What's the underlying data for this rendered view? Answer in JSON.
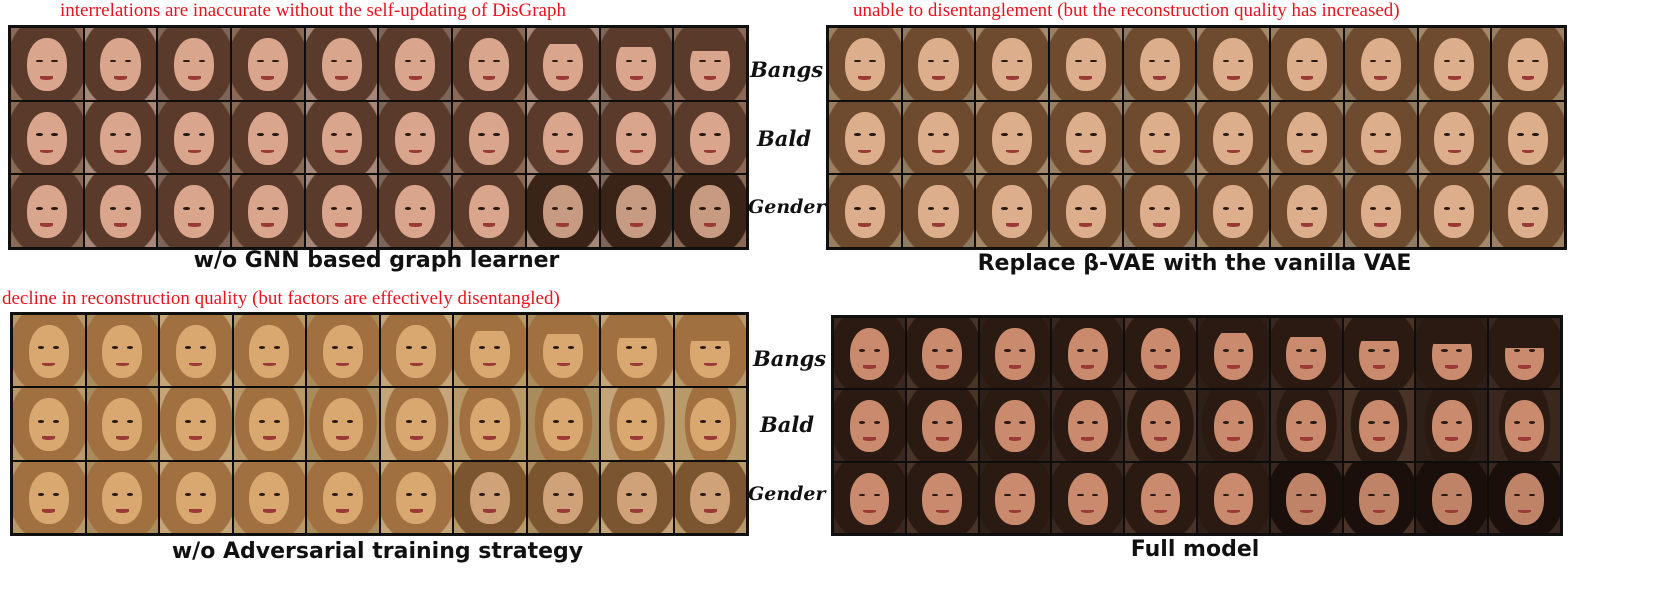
{
  "panels": [
    {
      "id": "tl",
      "note": "interrelations are inaccurate without the self-updating of DisGraph",
      "caption": "w/o GNN based graph learner",
      "row_labels": [
        "Bangs",
        "Bald",
        "Gender"
      ],
      "tone": "natural"
    },
    {
      "id": "tr",
      "note": "unable to disentanglement (but the reconstruction quality has increased)",
      "caption": "Replace β-VAE with the vanilla VAE",
      "row_labels": [],
      "tone": "warm"
    },
    {
      "id": "bl",
      "note": "decline in reconstruction quality (but factors are effectively disentangled)",
      "caption": "w/o Adversarial training strategy",
      "row_labels": [
        "Bangs",
        "Bald",
        "Gender"
      ],
      "tone": "blurry"
    },
    {
      "id": "br",
      "note": "",
      "caption": "Full model",
      "row_labels": [],
      "tone": "dark"
    }
  ],
  "colors": {
    "annotation": "#e8141b",
    "caption": "#111111",
    "grid_border": "#111111"
  }
}
